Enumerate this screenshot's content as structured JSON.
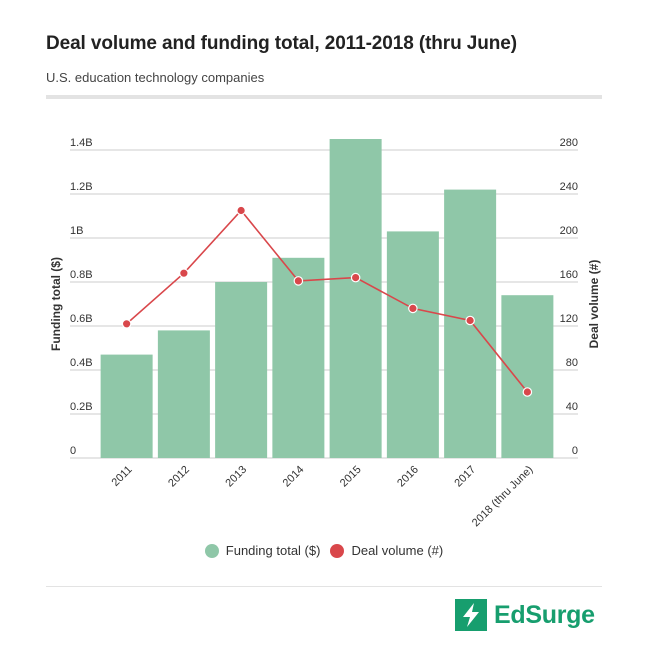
{
  "header": {
    "title": "Deal volume and funding total, 2011-2018 (thru June)",
    "subtitle": "U.S. education technology companies"
  },
  "brand": {
    "name": "EdSurge",
    "color": "#179e6e",
    "icon": "lightning-bolt-icon"
  },
  "colors": {
    "bar": "#8fc7a8",
    "line": "#d9474b",
    "grid": "#cccccc",
    "text": "#333333"
  },
  "chart_data": {
    "type": "bar",
    "title": "Deal volume and funding total, 2011-2018 (thru June)",
    "subtitle": "U.S. education technology companies",
    "categories": [
      "2011",
      "2012",
      "2013",
      "2014",
      "2015",
      "2016",
      "2017",
      "2018 (thru June)"
    ],
    "series": [
      {
        "name": "Funding total ($)",
        "type": "bar",
        "axis": "left",
        "values": [
          0.47,
          0.58,
          0.8,
          0.91,
          1.45,
          1.03,
          1.22,
          0.74
        ]
      },
      {
        "name": "Deal volume (#)",
        "type": "line",
        "axis": "right",
        "values": [
          122,
          168,
          225,
          161,
          164,
          136,
          125,
          60
        ]
      }
    ],
    "y_left": {
      "label": "Funding total ($)",
      "ylim": [
        0,
        1.4
      ],
      "ticks": [
        0,
        0.2,
        0.4,
        0.6,
        0.8,
        1.0,
        1.2,
        1.4
      ],
      "tick_labels": [
        "0",
        "0.2B",
        "0.4B",
        "0.6B",
        "0.8B",
        "1B",
        "1.2B",
        "1.4B"
      ]
    },
    "y_right": {
      "label": "Deal volume (#)",
      "ylim": [
        0,
        280
      ],
      "ticks": [
        0,
        40,
        80,
        120,
        160,
        200,
        240,
        280
      ],
      "tick_labels": [
        "0",
        "40",
        "80",
        "120",
        "160",
        "200",
        "240",
        "280"
      ]
    },
    "grid": true,
    "legend": {
      "position": "bottom",
      "entries": [
        "Funding total ($)",
        "Deal volume (#)"
      ]
    }
  }
}
